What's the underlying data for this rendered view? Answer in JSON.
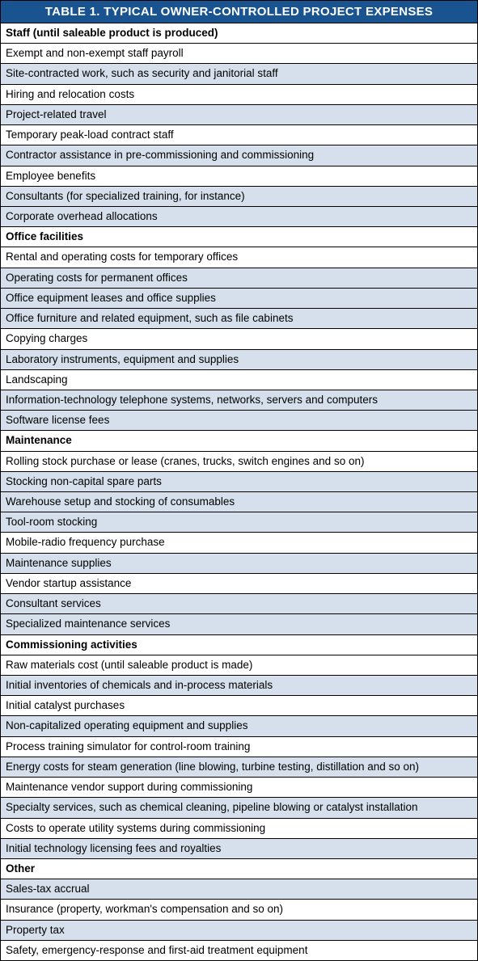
{
  "title": "TABLE 1. TYPICAL OWNER-CONTROLLED PROJECT EXPENSES",
  "colors": {
    "title_bg": "#1a5490",
    "title_text": "#ffffff",
    "shaded_bg": "#d5e0ec",
    "plain_bg": "#ffffff",
    "border": "#000000",
    "text": "#000000"
  },
  "typography": {
    "title_fontsize": 15,
    "row_fontsize": 13.5,
    "font_family": "Arial"
  },
  "rows": [
    {
      "text": "Staff (until saleable product is produced)",
      "header": true,
      "shaded": false
    },
    {
      "text": "Exempt and non-exempt staff payroll",
      "header": false,
      "shaded": false
    },
    {
      "text": "Site-contracted work, such as security and janitorial staff",
      "header": false,
      "shaded": true
    },
    {
      "text": "Hiring and relocation costs",
      "header": false,
      "shaded": false
    },
    {
      "text": "Project-related travel",
      "header": false,
      "shaded": true
    },
    {
      "text": "Temporary peak-load contract staff",
      "header": false,
      "shaded": false
    },
    {
      "text": "Contractor assistance in pre-commissioning and commissioning",
      "header": false,
      "shaded": true
    },
    {
      "text": "Employee benefits",
      "header": false,
      "shaded": false
    },
    {
      "text": "Consultants (for specialized training, for instance)",
      "header": false,
      "shaded": true
    },
    {
      "text": "Corporate overhead allocations",
      "header": false,
      "shaded": true
    },
    {
      "text": "Office facilities",
      "header": true,
      "shaded": false
    },
    {
      "text": "Rental and operating costs for temporary offices",
      "header": false,
      "shaded": false
    },
    {
      "text": "Operating costs for permanent offices",
      "header": false,
      "shaded": true
    },
    {
      "text": "Office equipment leases and office supplies",
      "header": false,
      "shaded": true
    },
    {
      "text": "Office furniture and related equipment, such as file cabinets",
      "header": false,
      "shaded": true
    },
    {
      "text": "Copying charges",
      "header": false,
      "shaded": false
    },
    {
      "text": "Laboratory instruments, equipment and supplies",
      "header": false,
      "shaded": true
    },
    {
      "text": "Landscaping",
      "header": false,
      "shaded": false
    },
    {
      "text": "Information-technology telephone systems, networks, servers and computers",
      "header": false,
      "shaded": true
    },
    {
      "text": "Software license fees",
      "header": false,
      "shaded": true
    },
    {
      "text": "Maintenance",
      "header": true,
      "shaded": false
    },
    {
      "text": "Rolling stock purchase or lease (cranes, trucks, switch engines and so on)",
      "header": false,
      "shaded": false
    },
    {
      "text": "Stocking non-capital spare parts",
      "header": false,
      "shaded": true
    },
    {
      "text": "Warehouse setup and stocking of consumables",
      "header": false,
      "shaded": true
    },
    {
      "text": "Tool-room stocking",
      "header": false,
      "shaded": true
    },
    {
      "text": "Mobile-radio frequency purchase",
      "header": false,
      "shaded": false
    },
    {
      "text": "Maintenance supplies",
      "header": false,
      "shaded": true
    },
    {
      "text": "Vendor startup assistance",
      "header": false,
      "shaded": false
    },
    {
      "text": "Consultant services",
      "header": false,
      "shaded": true
    },
    {
      "text": "Specialized maintenance services",
      "header": false,
      "shaded": true
    },
    {
      "text": "Commissioning activities",
      "header": true,
      "shaded": false
    },
    {
      "text": "Raw materials cost (until saleable product is made)",
      "header": false,
      "shaded": false
    },
    {
      "text": "Initial inventories of chemicals and in-process materials",
      "header": false,
      "shaded": true
    },
    {
      "text": "Initial catalyst purchases",
      "header": false,
      "shaded": false
    },
    {
      "text": "Non-capitalized operating equipment and supplies",
      "header": false,
      "shaded": true
    },
    {
      "text": "Process training simulator for control-room training",
      "header": false,
      "shaded": false
    },
    {
      "text": "Energy costs for steam generation (line blowing, turbine testing, distillation and so on)",
      "header": false,
      "shaded": true
    },
    {
      "text": "Maintenance vendor support during commissioning",
      "header": false,
      "shaded": false
    },
    {
      "text": "Specialty services, such as chemical cleaning, pipeline blowing or catalyst installation",
      "header": false,
      "shaded": true
    },
    {
      "text": "Costs to operate utility systems during commissioning",
      "header": false,
      "shaded": false
    },
    {
      "text": "Initial technology licensing fees and royalties",
      "header": false,
      "shaded": true
    },
    {
      "text": "Other",
      "header": true,
      "shaded": false
    },
    {
      "text": "Sales-tax accrual",
      "header": false,
      "shaded": true
    },
    {
      "text": "Insurance (property, workman's compensation and so on)",
      "header": false,
      "shaded": false
    },
    {
      "text": "Property tax",
      "header": false,
      "shaded": true
    },
    {
      "text": "Safety, emergency-response and first-aid treatment equipment",
      "header": false,
      "shaded": false
    }
  ]
}
